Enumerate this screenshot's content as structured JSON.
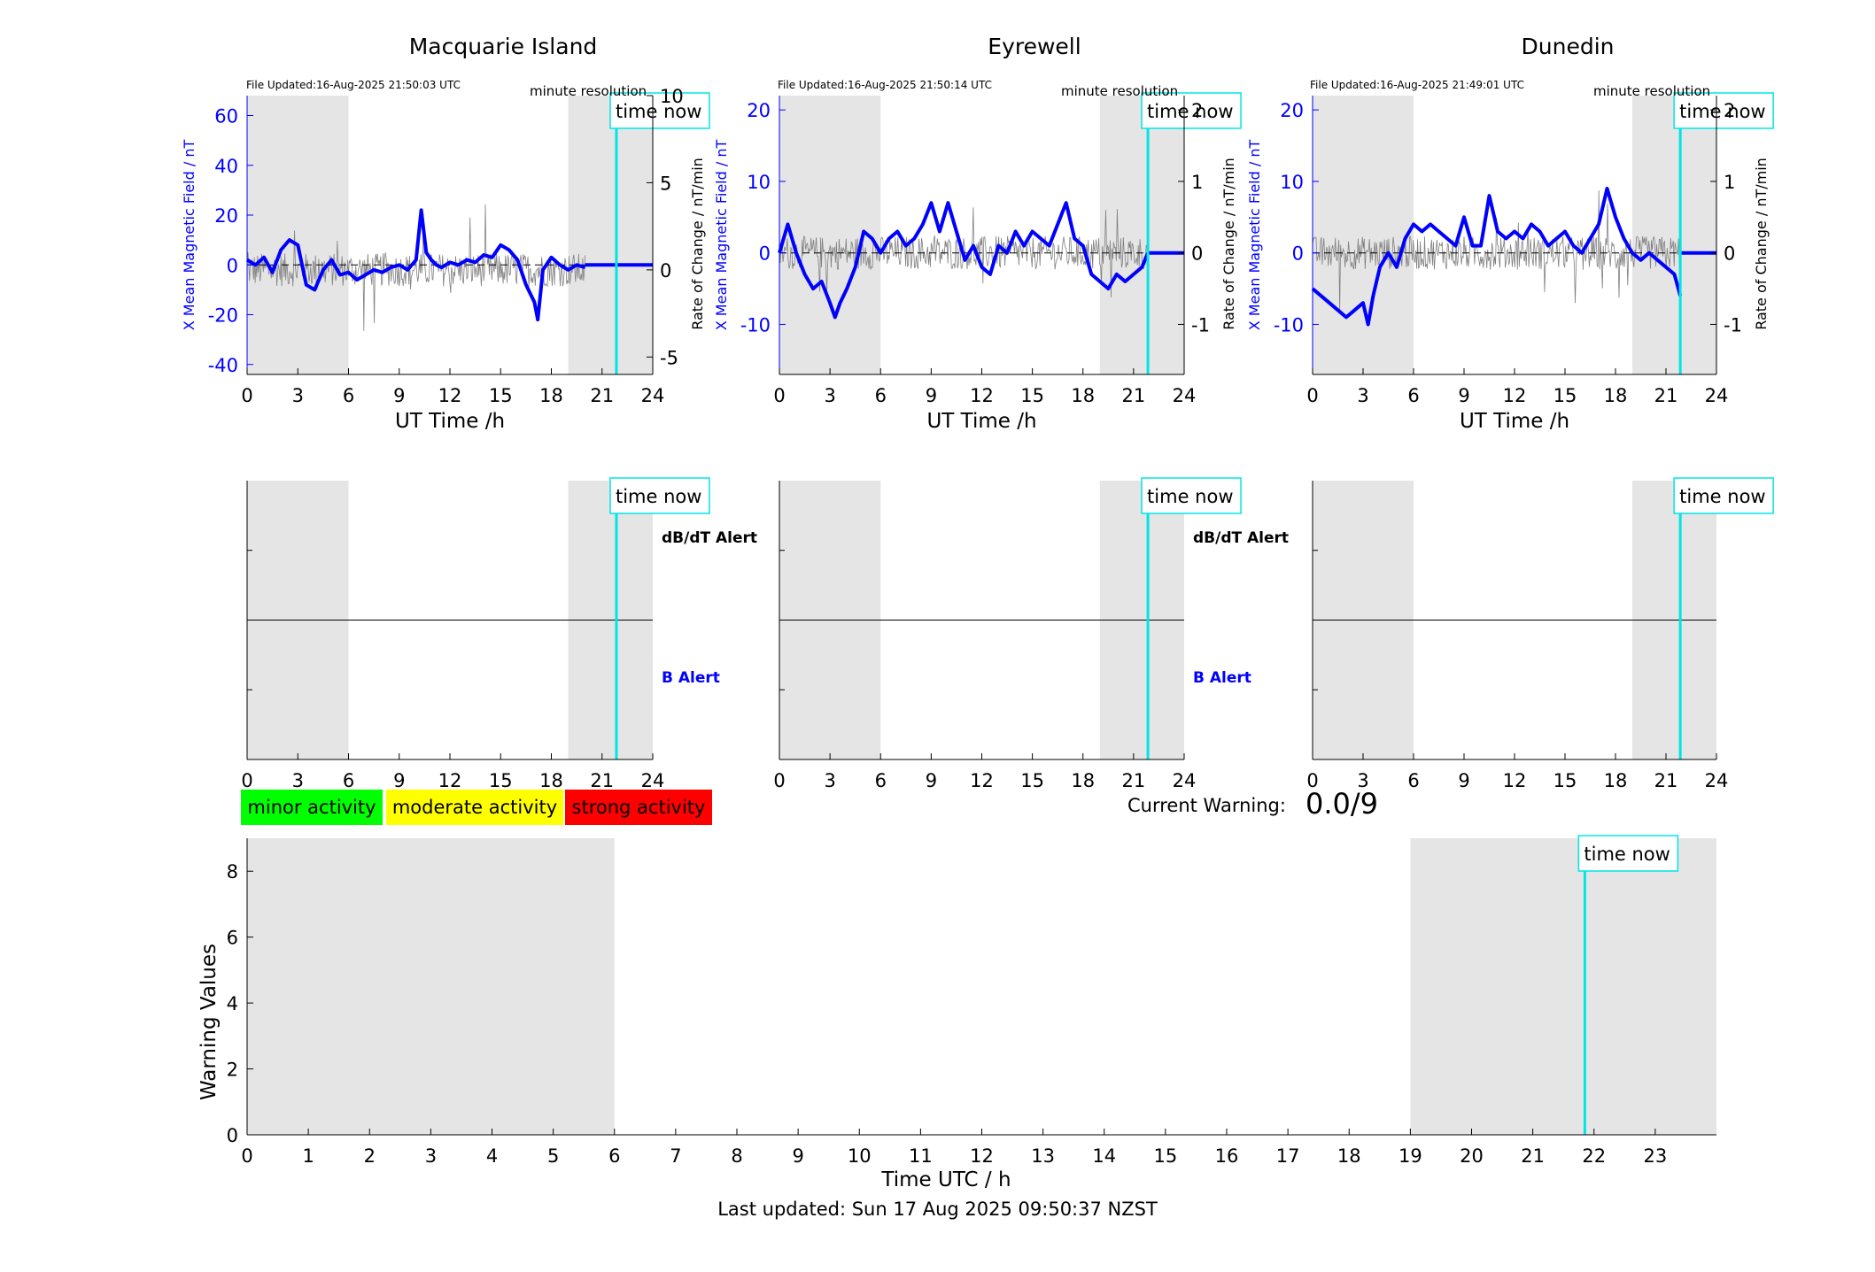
{
  "colors": {
    "grey_band": "#e5e5e5",
    "blue_trace": "#0000ff",
    "raw_trace": "#808080",
    "now_line": "#00e5e5",
    "minor": "#00ff00",
    "moderate": "#ffff00",
    "strong": "#ff0000"
  },
  "stations": [
    {
      "title": "Macquarie Island",
      "file_updated": "File Updated:16-Aug-2025 21:50:03 UTC",
      "resolution": "minute resolution"
    },
    {
      "title": "Eyrewell",
      "file_updated": "File Updated:16-Aug-2025 21:50:14 UTC",
      "resolution": "minute resolution"
    },
    {
      "title": "Dunedin",
      "file_updated": "File Updated:16-Aug-2025 21:49:01 UTC",
      "resolution": "minute resolution"
    }
  ],
  "legend": {
    "minor": "minor activity",
    "moderate": "moderate activity",
    "strong": "strong activity"
  },
  "current_warning": {
    "label": "Current Warning:",
    "value": "0.0/9"
  },
  "footer": "Last updated: Sun 17 Aug 2025 09:50:37 NZST",
  "chart_data": [
    {
      "type": "line",
      "title": "Macquarie Island",
      "xlabel": "UT Time /h",
      "ylabel": "X Mean Magnetic Field / nT",
      "y2label": "Rate of Change / nT/min",
      "xlim": [
        0,
        24
      ],
      "ylim": [
        -44,
        68
      ],
      "y2lim": [
        -6,
        10
      ],
      "xticks": [
        "0",
        "3",
        "6",
        "9",
        "12",
        "15",
        "18",
        "21",
        "24"
      ],
      "yticks": [
        "60",
        "40",
        "20",
        "0",
        "-20",
        "-40"
      ],
      "y2ticks": [
        "10",
        "5",
        "0",
        "-5"
      ],
      "grey_bands": [
        [
          0,
          6
        ],
        [
          19,
          24
        ]
      ],
      "time_now": 21.85,
      "time_now_label": "time now",
      "blue_end": 20,
      "series": [
        {
          "x": [
            0,
            0.5,
            1,
            1.5,
            2,
            2.5,
            3,
            3.5,
            4,
            4.5,
            5,
            5.5,
            6,
            6.5,
            7,
            7.5,
            8,
            8.5,
            9,
            9.5,
            10,
            10.3,
            10.6,
            10.9,
            11.2,
            11.5,
            12,
            12.5,
            13,
            13.5,
            14,
            14.5,
            15,
            15.5,
            16,
            16.5,
            17,
            17.2,
            17.5,
            18,
            18.5,
            19,
            19.5,
            20
          ],
          "values": [
            2,
            0,
            3,
            -3,
            6,
            10,
            8,
            -8,
            -10,
            -2,
            2,
            -4,
            -3,
            -6,
            -4,
            -2,
            -3,
            -1,
            0,
            -2,
            2,
            22,
            5,
            2,
            0,
            -1,
            1,
            0,
            2,
            1,
            4,
            3,
            8,
            6,
            2,
            -8,
            -15,
            -22,
            -2,
            3,
            0,
            -2,
            0,
            -1
          ]
        },
        {
          "x": [
            0,
            24
          ],
          "values": [
            0,
            0
          ]
        }
      ]
    },
    {
      "type": "line",
      "title": "Eyrewell",
      "xlabel": "UT Time /h",
      "ylabel": "X Mean Magnetic Field / nT",
      "y2label": "Rate of Change / nT/min",
      "xlim": [
        0,
        24
      ],
      "ylim": [
        -17,
        22
      ],
      "y2lim": [
        -1.7,
        2.2
      ],
      "xticks": [
        "0",
        "3",
        "6",
        "9",
        "12",
        "15",
        "18",
        "21",
        "24"
      ],
      "yticks": [
        "20",
        "10",
        "0",
        "-10"
      ],
      "y2ticks": [
        "2",
        "1",
        "0",
        "-1"
      ],
      "grey_bands": [
        [
          0,
          6
        ],
        [
          19,
          24
        ]
      ],
      "time_now": 21.85,
      "time_now_label": "time now",
      "blue_end": 21.85,
      "series": [
        {
          "x": [
            0,
            0.5,
            1,
            1.5,
            2,
            2.5,
            3,
            3.3,
            3.6,
            4,
            4.5,
            5,
            5.5,
            6,
            6.5,
            7,
            7.5,
            8,
            8.5,
            9,
            9.5,
            10,
            10.5,
            11,
            11.5,
            12,
            12.5,
            13,
            13.5,
            14,
            14.5,
            15,
            15.5,
            16,
            16.5,
            17,
            17.5,
            18,
            18.5,
            19,
            19.5,
            20,
            20.5,
            21,
            21.5,
            21.85
          ],
          "values": [
            0,
            4,
            0,
            -3,
            -5,
            -4,
            -7,
            -9,
            -7,
            -5,
            -2,
            3,
            2,
            0,
            2,
            3,
            1,
            2,
            4,
            7,
            3,
            7,
            3,
            -1,
            1,
            -2,
            -3,
            1,
            0,
            3,
            1,
            3,
            2,
            1,
            4,
            7,
            2,
            1,
            -3,
            -4,
            -5,
            -3,
            -4,
            -3,
            -2,
            0
          ]
        },
        {
          "x": [
            0,
            24
          ],
          "values": [
            0,
            0
          ]
        }
      ]
    },
    {
      "type": "line",
      "title": "Dunedin",
      "xlabel": "UT Time /h",
      "ylabel": "X Mean Magnetic Field / nT",
      "y2label": "Rate of Change / nT/min",
      "xlim": [
        0,
        24
      ],
      "ylim": [
        -17,
        22
      ],
      "y2lim": [
        -1.7,
        2.2
      ],
      "xticks": [
        "0",
        "3",
        "6",
        "9",
        "12",
        "15",
        "18",
        "21",
        "24"
      ],
      "yticks": [
        "20",
        "10",
        "0",
        "-10"
      ],
      "y2ticks": [
        "2",
        "1",
        "0",
        "-1"
      ],
      "grey_bands": [
        [
          0,
          6
        ],
        [
          19,
          24
        ]
      ],
      "time_now": 21.85,
      "time_now_label": "time now",
      "blue_end": 21.85,
      "series": [
        {
          "x": [
            0,
            0.5,
            1,
            1.5,
            2,
            2.5,
            3,
            3.3,
            3.6,
            4,
            4.5,
            5,
            5.5,
            6,
            6.5,
            7,
            7.5,
            8,
            8.5,
            9,
            9.5,
            10,
            10.5,
            11,
            11.5,
            12,
            12.5,
            13,
            13.5,
            14,
            14.5,
            15,
            15.5,
            16,
            16.5,
            17,
            17.5,
            18,
            18.5,
            19,
            19.5,
            20,
            20.5,
            21,
            21.5,
            21.85
          ],
          "values": [
            -5,
            -6,
            -7,
            -8,
            -9,
            -8,
            -7,
            -10,
            -6,
            -2,
            0,
            -2,
            2,
            4,
            3,
            4,
            3,
            2,
            1,
            5,
            1,
            1,
            8,
            3,
            2,
            3,
            2,
            4,
            3,
            1,
            2,
            3,
            1,
            0,
            2,
            4,
            9,
            5,
            2,
            0,
            -1,
            0,
            -1,
            -2,
            -3,
            -6
          ]
        },
        {
          "x": [
            0,
            24
          ],
          "values": [
            0,
            0
          ]
        }
      ]
    },
    {
      "type": "line",
      "title": "",
      "xlim": [
        0,
        24
      ],
      "xticks": [
        "0",
        "3",
        "6",
        "9",
        "12",
        "15",
        "18",
        "21",
        "24"
      ],
      "grey_bands": [
        [
          0,
          6
        ],
        [
          19,
          24
        ]
      ],
      "time_now": 21.85,
      "time_now_label": "time now",
      "labels": {
        "top": "dB/dT Alert",
        "bottom": "B Alert"
      }
    },
    {
      "type": "line",
      "title": "",
      "xlim": [
        0,
        24
      ],
      "xticks": [
        "0",
        "3",
        "6",
        "9",
        "12",
        "15",
        "18",
        "21",
        "24"
      ],
      "grey_bands": [
        [
          0,
          6
        ],
        [
          19,
          24
        ]
      ],
      "time_now": 21.85,
      "time_now_label": "time now",
      "labels": {
        "top": "dB/dT Alert",
        "bottom": "B Alert"
      }
    },
    {
      "type": "line",
      "title": "",
      "xlim": [
        0,
        24
      ],
      "xticks": [
        "0",
        "3",
        "6",
        "9",
        "12",
        "15",
        "18",
        "21",
        "24"
      ],
      "grey_bands": [
        [
          0,
          6
        ],
        [
          19,
          24
        ]
      ],
      "time_now": 21.85,
      "time_now_label": "time now",
      "labels": {
        "top": "",
        "bottom": ""
      }
    },
    {
      "type": "line",
      "title": "",
      "xlabel": "Time UTC / h",
      "ylabel": "Warning Values",
      "xlim": [
        0,
        24
      ],
      "ylim": [
        0,
        9
      ],
      "xticks": [
        "0",
        "1",
        "2",
        "3",
        "4",
        "5",
        "6",
        "7",
        "8",
        "9",
        "10",
        "11",
        "12",
        "13",
        "14",
        "15",
        "16",
        "17",
        "18",
        "19",
        "20",
        "21",
        "22",
        "23"
      ],
      "yticks": [
        "0",
        "2",
        "4",
        "6",
        "8"
      ],
      "grey_bands": [
        [
          0,
          6
        ],
        [
          19,
          24
        ]
      ],
      "time_now": 21.85,
      "time_now_label": "time now",
      "series": []
    }
  ]
}
